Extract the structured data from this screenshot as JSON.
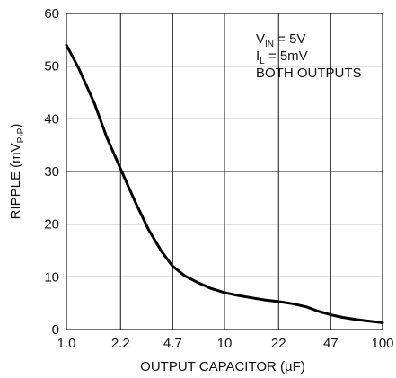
{
  "chart_data": {
    "type": "line",
    "title": "",
    "xlabel": "OUTPUT CAPACITOR (µF)",
    "ylabel": {
      "main": "RIPPLE (mV",
      "sub": "P-P",
      "close": ")"
    },
    "x_scale": "log",
    "x_ticks": [
      "1.0",
      "2.2",
      "4.7",
      "10",
      "22",
      "47",
      "100"
    ],
    "y_ticks": [
      "0",
      "10",
      "20",
      "30",
      "40",
      "50",
      "60"
    ],
    "xlim": [
      1.0,
      100
    ],
    "ylim": [
      0,
      60
    ],
    "grid": true,
    "annotation": {
      "line1_main": "V",
      "line1_sub": "IN",
      "line1_rest": " = 5V",
      "line2_main": "I",
      "line2_sub": "L",
      "line2_rest": " = 5mV",
      "line3": "BOTH OUTPUTS"
    },
    "series": [
      {
        "x": [
          1.0,
          1.2,
          1.5,
          1.8,
          2.2,
          2.7,
          3.3,
          4.0,
          4.7,
          5.6,
          6.8,
          8.2,
          10,
          12,
          15,
          18,
          22,
          27,
          33,
          39,
          47,
          56,
          68,
          82,
          100
        ],
        "y": [
          54,
          49.5,
          43,
          36.5,
          30.5,
          24.5,
          19,
          14.8,
          12,
          10.2,
          8.9,
          7.8,
          7.0,
          6.5,
          6.0,
          5.6,
          5.3,
          4.9,
          4.3,
          3.5,
          2.8,
          2.3,
          1.9,
          1.6,
          1.3
        ]
      }
    ]
  }
}
